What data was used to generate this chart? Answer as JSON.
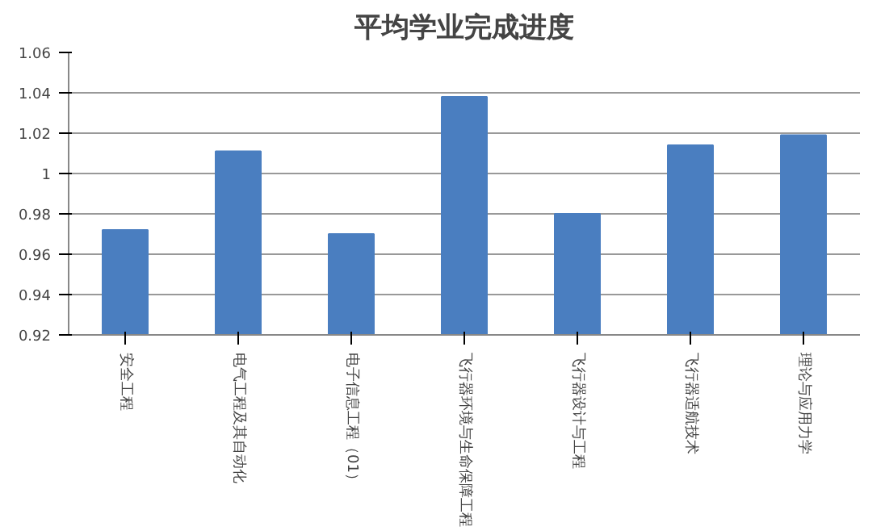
{
  "chart_data": {
    "type": "bar",
    "title": "平均学业完成进度",
    "categories": [
      "安全工程",
      "电气工程及其自动化",
      "电子信息工程（01）",
      "飞行器环境与生命保障工程",
      "飞行器设计与工程",
      "飞行器适航技术",
      "理论与应用力学"
    ],
    "values": [
      0.972,
      1.011,
      0.97,
      1.038,
      0.98,
      1.014,
      1.019
    ],
    "color": "#4a7ec0",
    "ylim": [
      0.92,
      1.06
    ],
    "yticks": [
      0.92,
      0.94,
      0.96,
      0.98,
      1,
      1.02,
      1.04,
      1.06
    ],
    "grid": "y"
  }
}
